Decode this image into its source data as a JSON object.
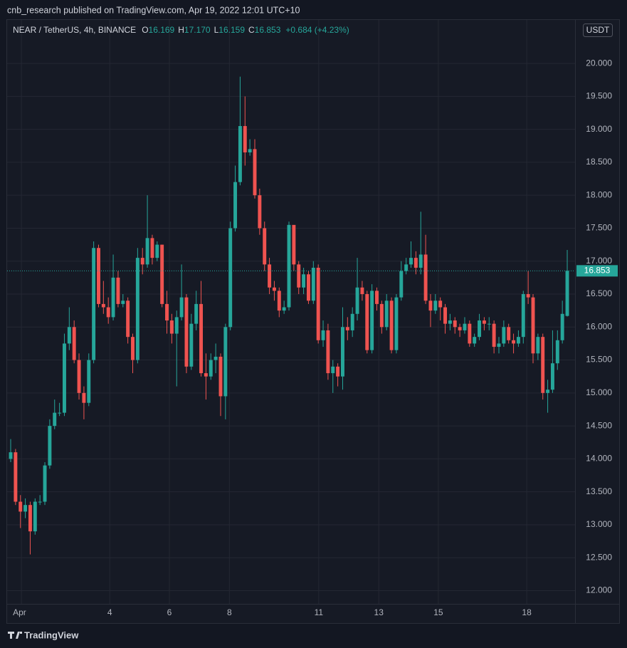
{
  "header": "cnb_research published on TradingView.com, Apr 19, 2022 12:01 UTC+10",
  "footer": "TradingView",
  "chart_data": {
    "type": "candlestick",
    "title": "NEAR / TetherUS, 4h, BINANCE",
    "legend": [
      {
        "key": "O",
        "value": "16.169"
      },
      {
        "key": "H",
        "value": "17.170"
      },
      {
        "key": "L",
        "value": "16.159"
      },
      {
        "key": "C",
        "value": "16.853"
      }
    ],
    "change": "+0.684 (+4.23%)",
    "currency": "USDT",
    "up_color": "#26a69a",
    "down_color": "#ef5350",
    "grid": true,
    "xlim": [
      -0.73,
      115.6
    ],
    "xticks": [
      {
        "value": 2.2,
        "label": "Apr"
      },
      {
        "value": 20.3,
        "label": "4"
      },
      {
        "value": 32.5,
        "label": "6"
      },
      {
        "value": 44.8,
        "label": "8"
      },
      {
        "value": 63.1,
        "label": "11"
      },
      {
        "value": 75.4,
        "label": "13"
      },
      {
        "value": 87.6,
        "label": "15"
      },
      {
        "value": 105.7,
        "label": "18"
      }
    ],
    "ylim": [
      11.8,
      20.66
    ],
    "yticks": [
      {
        "value": 12,
        "label": "12.000"
      },
      {
        "value": 12.5,
        "label": "12.500"
      },
      {
        "value": 13,
        "label": "13.000"
      },
      {
        "value": 13.5,
        "label": "13.500"
      },
      {
        "value": 14,
        "label": "14.000"
      },
      {
        "value": 14.5,
        "label": "14.500"
      },
      {
        "value": 15,
        "label": "15.000"
      },
      {
        "value": 15.5,
        "label": "15.500"
      },
      {
        "value": 16,
        "label": "16.000"
      },
      {
        "value": 16.5,
        "label": "16.500"
      },
      {
        "value": 17,
        "label": "17.000"
      },
      {
        "value": 17.5,
        "label": "17.500"
      },
      {
        "value": 18,
        "label": "18.000"
      },
      {
        "value": 18.5,
        "label": "18.500"
      },
      {
        "value": 19,
        "label": "19.000"
      },
      {
        "value": 19.5,
        "label": "19.500"
      },
      {
        "value": 20,
        "label": "20.000"
      }
    ],
    "open": [
      14.0,
      14.1,
      13.35,
      13.2,
      13.3,
      12.9,
      13.35,
      13.35,
      13.9,
      14.5,
      14.7,
      14.7,
      15.75,
      16.0,
      15.5,
      15.0,
      14.85,
      15.5,
      17.2,
      16.35,
      16.3,
      16.15,
      16.75,
      16.35,
      16.4,
      15.85,
      15.5,
      17.05,
      16.95,
      17.35,
      17.05,
      17.25,
      16.35,
      16.1,
      15.9,
      16.15,
      16.45,
      15.4,
      16.05,
      16.35,
      15.3,
      15.25,
      15.5,
      15.55,
      14.95,
      16.0,
      17.5,
      18.2,
      19.05,
      18.65,
      18.7,
      18.0,
      17.5,
      16.95,
      16.6,
      16.55,
      16.25,
      16.3,
      17.55,
      16.95,
      16.6,
      16.8,
      16.4,
      16.9,
      15.8,
      15.95,
      15.3,
      15.4,
      15.25,
      16.0,
      15.95,
      16.2,
      16.6,
      16.5,
      15.65,
      16.55,
      16.35,
      16.0,
      16.4,
      15.65,
      16.45,
      16.85,
      16.95,
      17.05,
      16.9,
      17.1,
      16.4,
      16.25,
      16.4,
      16.3,
      16.05,
      16.1,
      16.0,
      15.95,
      16.05,
      15.75,
      15.85,
      16.1,
      16.05,
      16.05,
      15.7,
      15.75,
      16.0,
      15.8,
      15.75,
      15.85,
      16.5,
      16.45,
      15.6,
      15.85,
      15.0,
      15.05,
      15.45,
      15.8,
      16.169
    ],
    "high": [
      14.3,
      14.15,
      13.45,
      13.4,
      13.35,
      13.4,
      13.45,
      13.95,
      14.6,
      14.9,
      14.85,
      15.9,
      16.3,
      16.1,
      15.6,
      15.1,
      15.6,
      17.3,
      17.25,
      16.7,
      16.45,
      17.1,
      16.85,
      16.5,
      16.45,
      15.9,
      17.2,
      17.2,
      18.0,
      17.4,
      17.3,
      17.25,
      16.55,
      16.2,
      16.25,
      16.95,
      16.5,
      16.2,
      16.55,
      16.7,
      15.6,
      15.6,
      15.75,
      15.6,
      16.05,
      17.6,
      18.45,
      19.8,
      19.5,
      18.85,
      18.85,
      18.1,
      17.6,
      17.05,
      16.7,
      16.6,
      16.4,
      17.6,
      17.5,
      17.0,
      16.9,
      16.85,
      17.0,
      16.95,
      16.1,
      16.05,
      15.5,
      15.45,
      16.3,
      16.15,
      16.3,
      17.05,
      16.7,
      16.55,
      16.65,
      16.6,
      16.4,
      16.5,
      16.45,
      16.5,
      17.0,
      17.05,
      17.3,
      17.15,
      17.75,
      17.4,
      16.5,
      16.5,
      16.45,
      16.35,
      16.2,
      16.15,
      16.05,
      16.15,
      16.1,
      15.9,
      16.2,
      16.15,
      16.15,
      16.1,
      15.85,
      16.1,
      16.05,
      15.9,
      15.95,
      16.55,
      16.85,
      16.5,
      15.9,
      15.9,
      15.2,
      15.95,
      15.95,
      16.4,
      17.17
    ],
    "low": [
      13.95,
      13.3,
      12.95,
      13.1,
      12.55,
      12.85,
      13.3,
      13.3,
      13.85,
      14.45,
      14.65,
      14.65,
      15.65,
      15.45,
      14.9,
      14.6,
      14.8,
      15.45,
      16.3,
      16.2,
      16.05,
      16.1,
      16.3,
      16.3,
      15.75,
      15.3,
      15.45,
      16.8,
      16.9,
      16.95,
      17.0,
      16.3,
      15.9,
      15.75,
      15.1,
      16.1,
      15.3,
      15.35,
      15.95,
      15.25,
      14.9,
      15.2,
      15.3,
      14.65,
      14.6,
      15.95,
      17.45,
      18.15,
      18.45,
      18.6,
      17.95,
      17.4,
      16.85,
      16.5,
      16.4,
      16.15,
      16.2,
      16.25,
      16.85,
      16.5,
      16.5,
      16.35,
      16.35,
      15.75,
      15.7,
      15.2,
      15.0,
      15.1,
      15.05,
      15.8,
      15.85,
      16.1,
      16.4,
      15.6,
      15.6,
      16.25,
      15.9,
      15.95,
      15.6,
      15.6,
      16.4,
      16.8,
      16.9,
      16.8,
      16.8,
      16.35,
      16.0,
      16.2,
      16.1,
      15.9,
      15.95,
      15.9,
      15.85,
      15.9,
      15.7,
      15.7,
      15.8,
      15.95,
      15.95,
      15.6,
      15.6,
      15.7,
      15.75,
      15.6,
      15.7,
      15.75,
      16.35,
      15.45,
      15.5,
      14.9,
      14.7,
      15.0,
      15.35,
      15.75,
      16.159
    ],
    "close": [
      14.1,
      13.35,
      13.2,
      13.3,
      12.9,
      13.35,
      13.35,
      13.9,
      14.5,
      14.7,
      14.7,
      15.75,
      16.0,
      15.5,
      15.0,
      14.85,
      15.5,
      17.2,
      16.35,
      16.3,
      16.15,
      16.75,
      16.35,
      16.4,
      15.85,
      15.5,
      17.05,
      16.95,
      17.35,
      17.05,
      17.25,
      16.35,
      16.1,
      15.9,
      16.15,
      16.45,
      15.4,
      16.05,
      16.35,
      15.3,
      15.25,
      15.5,
      15.55,
      14.95,
      16.0,
      17.5,
      18.2,
      19.05,
      18.65,
      18.7,
      18.0,
      17.5,
      16.95,
      16.6,
      16.55,
      16.25,
      16.3,
      17.55,
      16.95,
      16.6,
      16.8,
      16.4,
      16.9,
      15.8,
      15.95,
      15.3,
      15.4,
      15.25,
      16.0,
      15.95,
      16.2,
      16.6,
      16.5,
      15.65,
      16.55,
      16.35,
      16.0,
      16.4,
      15.65,
      16.45,
      16.85,
      16.95,
      17.05,
      16.9,
      17.1,
      16.4,
      16.25,
      16.4,
      16.3,
      16.05,
      16.1,
      16.0,
      15.95,
      16.05,
      15.75,
      15.85,
      16.1,
      16.05,
      16.05,
      15.7,
      15.75,
      16.0,
      15.8,
      15.75,
      15.85,
      16.5,
      16.45,
      15.6,
      15.85,
      15.0,
      15.05,
      15.45,
      15.8,
      16.2,
      16.853
    ]
  }
}
